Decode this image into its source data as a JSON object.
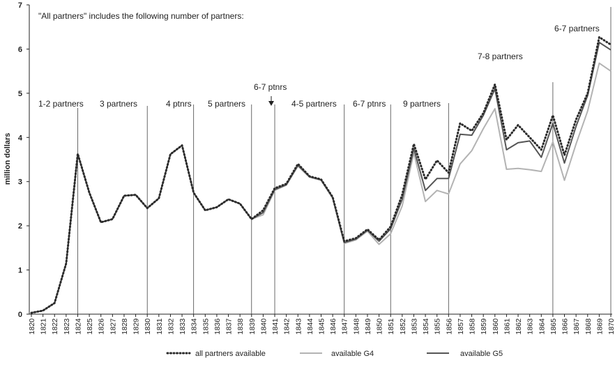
{
  "chart_data": {
    "type": "line",
    "y_label": "million dollars",
    "categories": [
      "1820",
      "1821",
      "1822",
      "1823",
      "1824",
      "1825",
      "1826",
      "1827",
      "1828",
      "1829",
      "1830",
      "1831",
      "1832",
      "1833",
      "1834",
      "1835",
      "1836",
      "1837",
      "1838",
      "1839",
      "1840",
      "1841",
      "1842",
      "1843",
      "1844",
      "1845",
      "1846",
      "1847",
      "1848",
      "1849",
      "1850",
      "1851",
      "1852",
      "1853",
      "1854",
      "1855",
      "1856",
      "1857",
      "1858",
      "1859",
      "1860",
      "1861",
      "1862",
      "1863",
      "1864",
      "1865",
      "1866",
      "1867",
      "1868",
      "1869",
      "1870"
    ],
    "series": [
      {
        "name": "all partners available",
        "color": "#2b2b2b",
        "values": [
          0.03,
          0.08,
          0.25,
          1.15,
          3.63,
          2.75,
          2.08,
          2.15,
          2.68,
          2.7,
          2.4,
          2.62,
          3.62,
          3.82,
          2.75,
          2.35,
          2.42,
          2.6,
          2.5,
          2.15,
          2.35,
          2.85,
          2.95,
          3.4,
          3.12,
          3.05,
          2.65,
          1.65,
          1.72,
          1.92,
          1.68,
          1.98,
          2.7,
          3.85,
          3.05,
          3.48,
          3.2,
          4.32,
          4.15,
          4.55,
          5.2,
          3.95,
          4.28,
          4.0,
          3.72,
          4.5,
          3.6,
          4.4,
          5.0,
          6.27,
          6.1
        ]
      },
      {
        "name": "available G4",
        "color": "#b3b3b3",
        "values": [
          0.03,
          0.08,
          0.25,
          1.15,
          3.63,
          2.75,
          2.08,
          2.15,
          2.68,
          2.7,
          2.4,
          2.62,
          3.62,
          3.82,
          2.75,
          2.35,
          2.42,
          2.6,
          2.5,
          2.15,
          2.25,
          2.8,
          2.92,
          3.35,
          3.1,
          3.03,
          2.62,
          1.6,
          1.68,
          1.88,
          1.58,
          1.82,
          2.45,
          3.65,
          2.55,
          2.8,
          2.72,
          3.4,
          3.7,
          4.2,
          4.65,
          3.28,
          3.3,
          3.27,
          3.23,
          3.9,
          3.03,
          3.85,
          4.6,
          5.68,
          5.5
        ]
      },
      {
        "name": "available G5",
        "color": "#555555",
        "values": [
          0.03,
          0.08,
          0.25,
          1.15,
          3.63,
          2.75,
          2.08,
          2.15,
          2.68,
          2.7,
          2.4,
          2.62,
          3.62,
          3.82,
          2.75,
          2.35,
          2.42,
          2.6,
          2.5,
          2.15,
          2.3,
          2.82,
          2.93,
          3.37,
          3.11,
          3.04,
          2.64,
          1.62,
          1.7,
          1.9,
          1.65,
          1.93,
          2.6,
          3.75,
          2.8,
          3.07,
          3.07,
          4.07,
          4.05,
          4.5,
          5.1,
          3.72,
          3.88,
          3.92,
          3.55,
          4.32,
          3.42,
          4.25,
          4.95,
          6.15,
          5.98
        ]
      }
    ],
    "ylim": [
      0,
      7
    ],
    "yticks": [
      0,
      1,
      2,
      3,
      4,
      5,
      6,
      7
    ],
    "annotations": [
      "\"All partners\" includes the following number of partners:",
      "1-2 partners",
      "3 partners",
      "4 ptnrs",
      "5 partners",
      "6-7 ptnrs",
      "4-5 partners",
      "6-7 ptnrs",
      "9 partners",
      "7-8 partners",
      "6-7 partners"
    ]
  }
}
